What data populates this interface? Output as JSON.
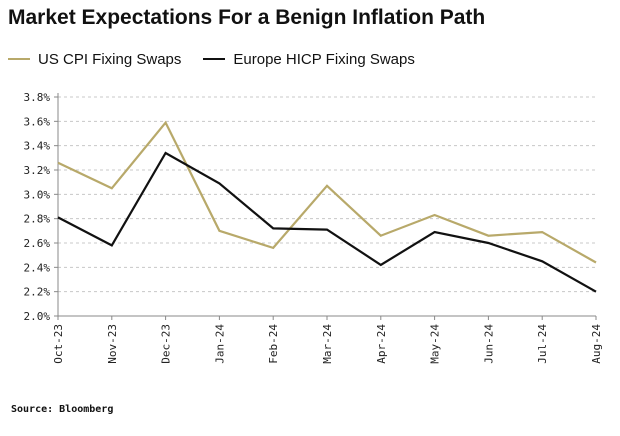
{
  "title": "Market Expectations For a Benign Inflation Path",
  "source": "Source: Bloomberg",
  "chart_data": {
    "type": "line",
    "title": "Market Expectations For a Benign Inflation Path",
    "xlabel": "",
    "ylabel": "",
    "categories": [
      "Oct-23",
      "Nov-23",
      "Dec-23",
      "Jan-24",
      "Feb-24",
      "Mar-24",
      "Apr-24",
      "May-24",
      "Jun-24",
      "Jul-24",
      "Aug-24"
    ],
    "ylim": [
      2.0,
      3.8
    ],
    "yticks": [
      2.0,
      2.2,
      2.4,
      2.6,
      2.8,
      3.0,
      3.2,
      3.4,
      3.6,
      3.8
    ],
    "ytick_labels": [
      "2.0%",
      "2.2%",
      "2.4%",
      "2.6%",
      "2.8%",
      "3.0%",
      "3.2%",
      "3.4%",
      "3.6%",
      "3.8%"
    ],
    "grid": "horizontal dashed",
    "legend": "top-left",
    "series": [
      {
        "name": "US CPI Fixing Swaps",
        "color": "#b8a96a",
        "values": [
          3.26,
          3.05,
          3.59,
          2.7,
          2.56,
          3.07,
          2.66,
          2.83,
          2.66,
          2.69,
          2.44
        ]
      },
      {
        "name": "Europe HICP Fixing Swaps",
        "color": "#111111",
        "values": [
          2.81,
          2.58,
          3.34,
          3.09,
          2.72,
          2.71,
          2.42,
          2.69,
          2.6,
          2.45,
          2.2
        ]
      }
    ]
  }
}
